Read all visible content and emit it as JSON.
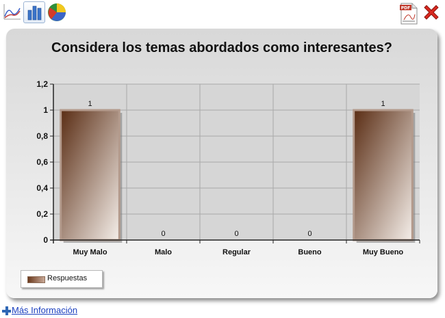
{
  "toolbar": {
    "icons": [
      "line-chart-icon",
      "bar-chart-icon",
      "pie-chart-icon",
      "pdf-icon",
      "close-icon"
    ],
    "selected": "bar-chart-icon",
    "pdf_label": "PDF"
  },
  "chart_data": {
    "type": "bar",
    "title": "Considera los temas abordados como interesantes?",
    "categories": [
      "Muy Malo",
      "Malo",
      "Regular",
      "Bueno",
      "Muy Bueno"
    ],
    "series": [
      {
        "name": "Respuestas",
        "values": [
          1,
          0,
          0,
          0,
          1
        ]
      }
    ],
    "data_labels": [
      "1",
      "0",
      "0",
      "0",
      "1"
    ],
    "ylim": [
      0,
      1.2
    ],
    "yticks": [
      "0",
      "0,2",
      "0,4",
      "0,6",
      "0,8",
      "1",
      "1,2"
    ],
    "grid": true,
    "legend_position": "bottom-left",
    "colors": {
      "bar_dark": "#5a2d14",
      "bar_light": "#f5efea",
      "bar_edge": "#b39a8c"
    }
  },
  "footer": {
    "more_info": "Más Información"
  }
}
